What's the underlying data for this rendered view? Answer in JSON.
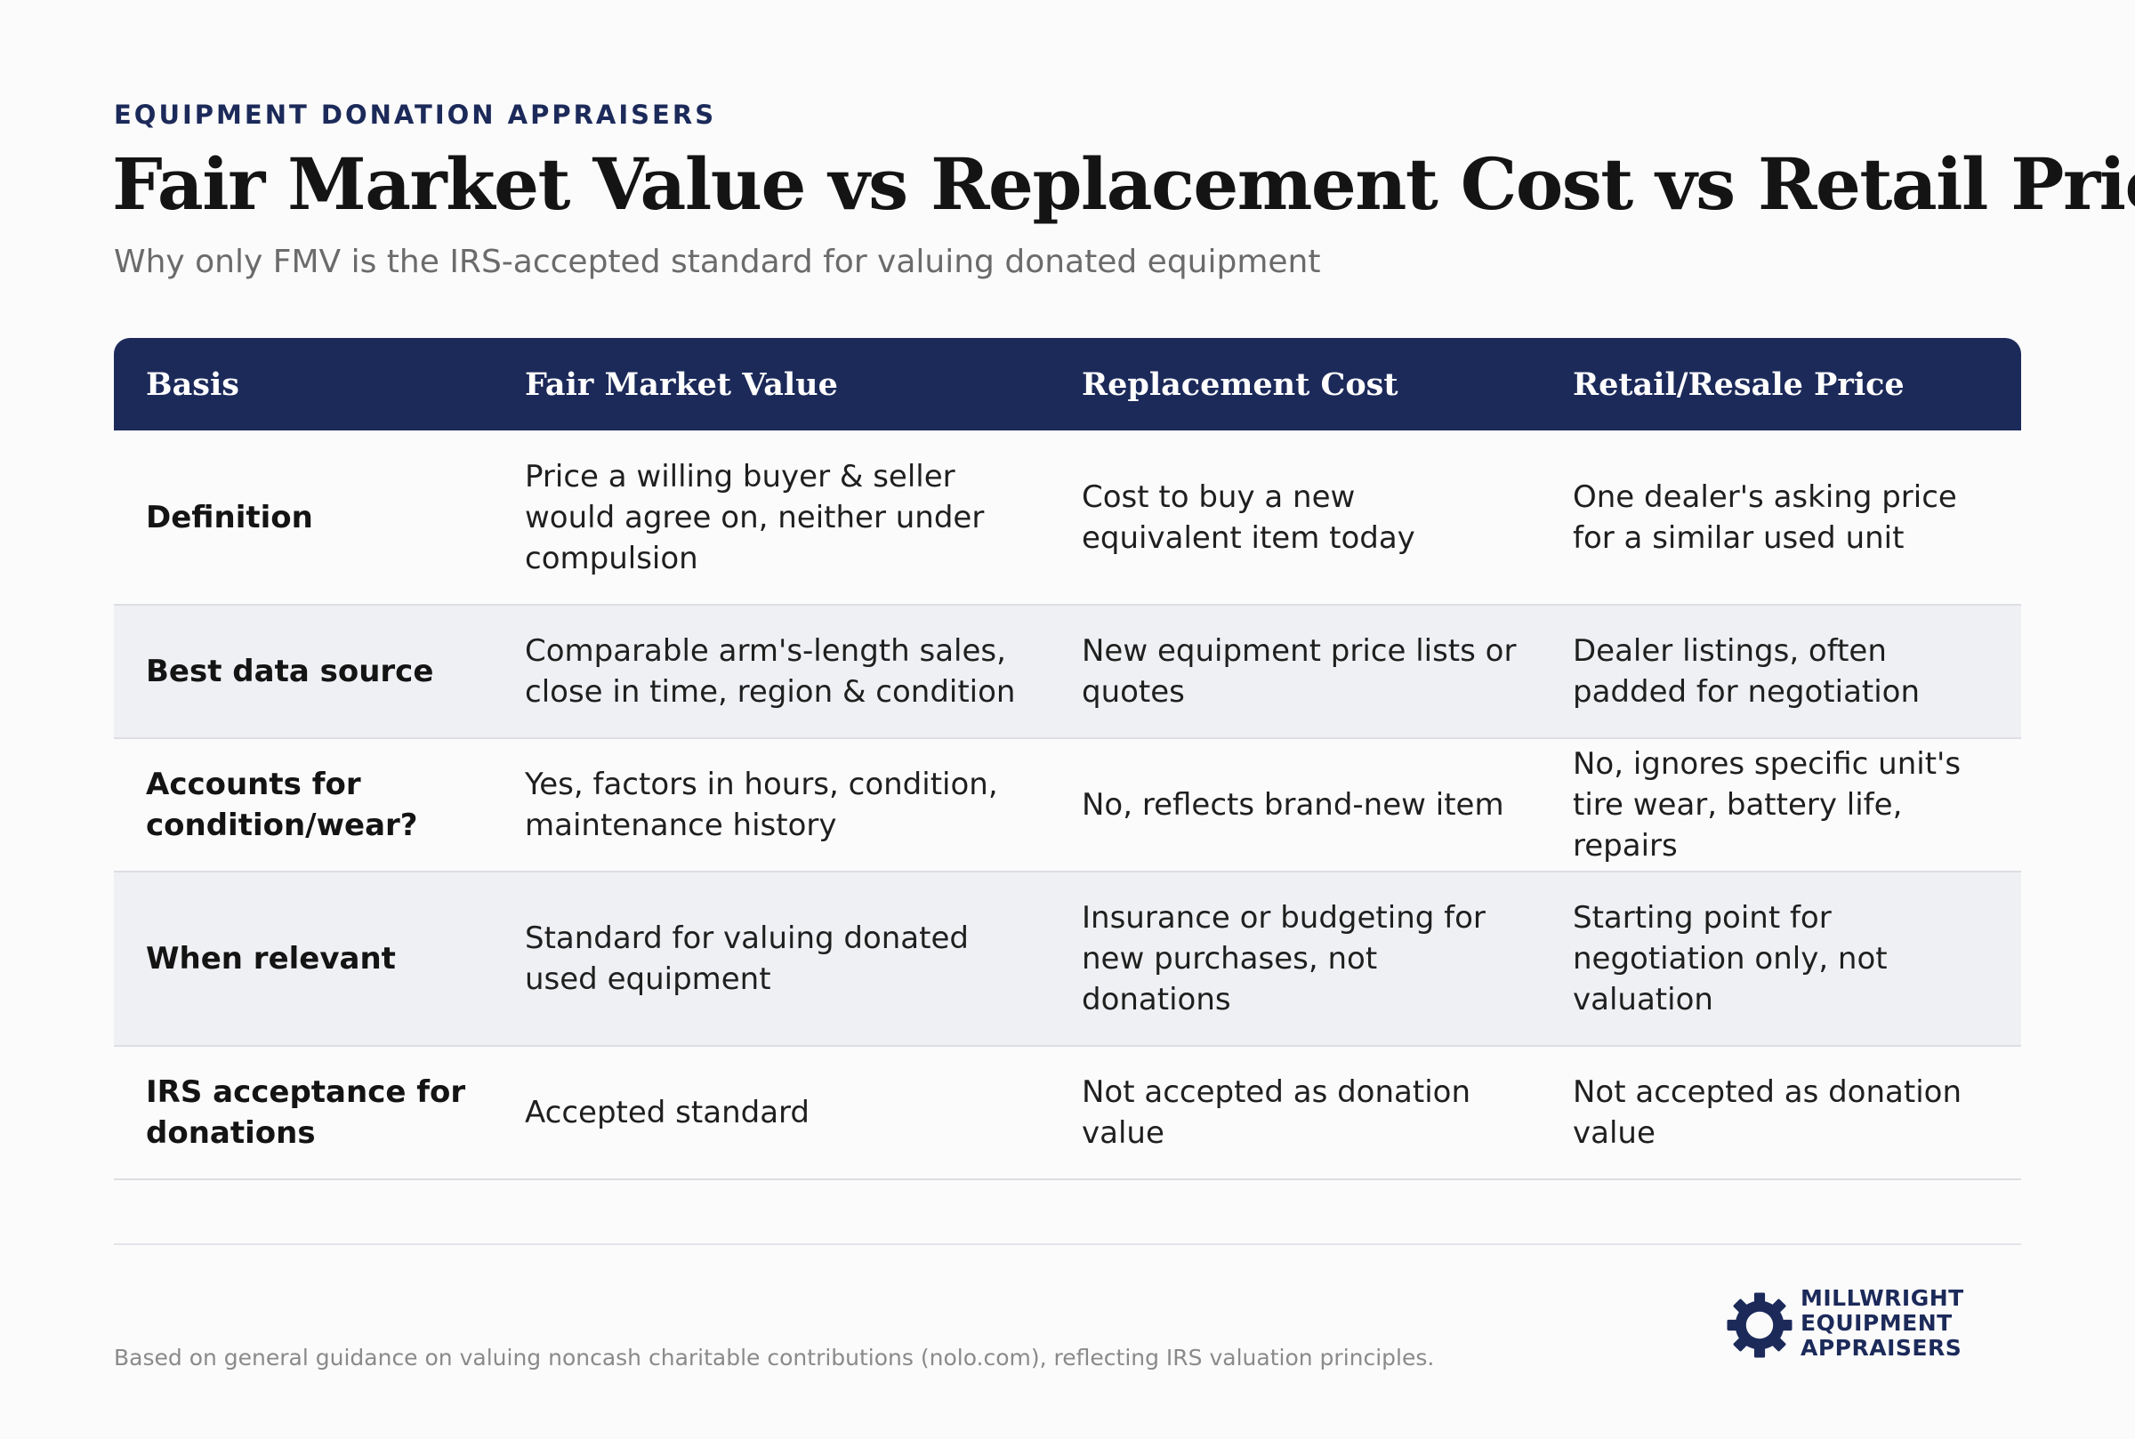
{
  "header": {
    "eyebrow": "EQUIPMENT DONATION APPRAISERS",
    "title": "Fair Market Value vs Replacement Cost vs Retail Price",
    "subtitle": "Why only FMV is the IRS-accepted standard for valuing donated equipment"
  },
  "table": {
    "columns": [
      "Basis",
      "Fair Market Value",
      "Replacement Cost",
      "Retail/Resale Price"
    ],
    "rows": [
      {
        "label": "Definition",
        "cells": [
          "Price a willing buyer & seller would agree on, neither under compulsion",
          "Cost to buy a new equivalent item today",
          "One dealer's asking price for a similar used unit"
        ]
      },
      {
        "label": "Best data source",
        "cells": [
          "Comparable arm's-length sales, close in time, region & condition",
          "New equipment price lists or quotes",
          "Dealer listings, often padded for negotiation"
        ]
      },
      {
        "label": "Accounts for condition/wear?",
        "cells": [
          "Yes, factors in hours, condition, maintenance history",
          "No, reflects brand-new item",
          "No, ignores specific unit's tire wear, battery life, repairs"
        ]
      },
      {
        "label": "When relevant",
        "cells": [
          "Standard for valuing donated used equipment",
          "Insurance or budgeting for new purchases, not donations",
          "Starting point for negotiation only, not valuation"
        ]
      },
      {
        "label": "IRS acceptance for donations",
        "cells": [
          "Accepted standard",
          "Not accepted as donation value",
          "Not accepted as donation value"
        ]
      }
    ]
  },
  "footer": {
    "note": "Based on general guidance on valuing noncash charitable contributions (nolo.com), reflecting IRS valuation principles.",
    "logo": {
      "icon": "gear-icon",
      "lines": [
        "MILLWRIGHT",
        "EQUIPMENT",
        "APPRAISERS"
      ]
    }
  },
  "colors": {
    "navy": "#1c2a5a",
    "row_alt": "#eff0f3",
    "background": "#fbfbfb"
  }
}
